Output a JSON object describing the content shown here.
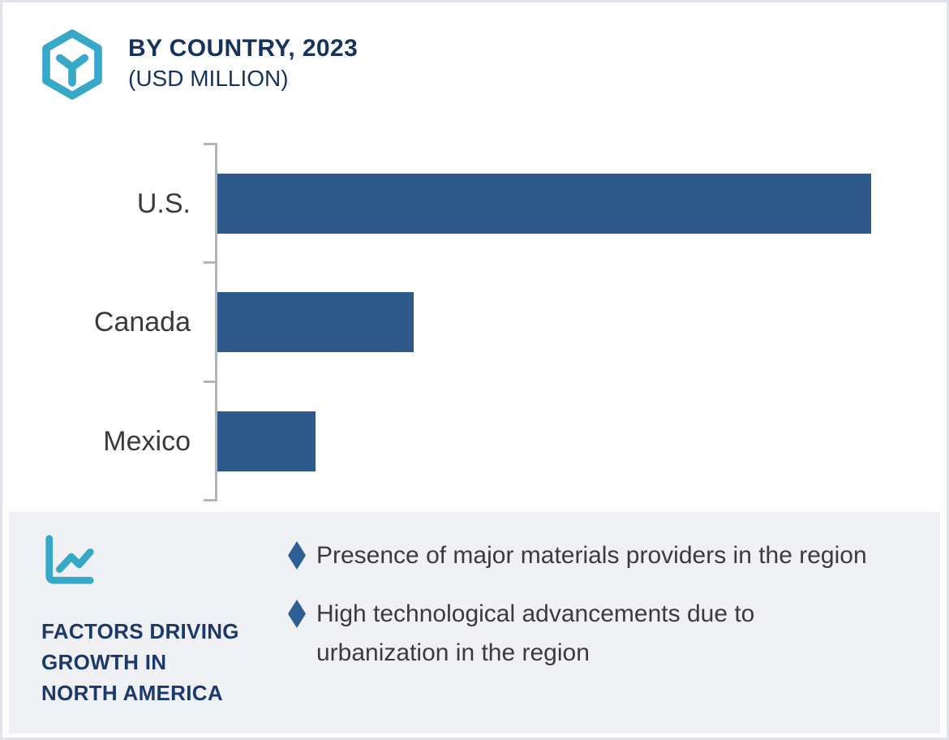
{
  "header": {
    "title_line1": "BY COUNTRY, 2023",
    "title_line2": "(USD MILLION)",
    "icon": "hexagon-cube-icon"
  },
  "chart_data": {
    "type": "bar",
    "orientation": "horizontal",
    "title": "BY COUNTRY, 2023 (USD MILLION)",
    "categories": [
      "U.S.",
      "Canada",
      "Mexico"
    ],
    "values": [
      100,
      30,
      15
    ],
    "values_are_relative_estimates": true,
    "value_axis_labels_visible": false,
    "grid": false,
    "legend": false,
    "bar_color": "#2d5a8a",
    "axis_color": "#b2b5ba",
    "label_color": "#3a3a3a"
  },
  "footer": {
    "icon": "line-chart-icon",
    "heading_lines": [
      "FACTORS DRIVING",
      "GROWTH IN",
      "NORTH AMERICA"
    ],
    "bullet_marker_icon": "diamond-icon",
    "bullets": [
      "Presence of major materials providers in the region",
      "High technological advancements due to urbanization in the region"
    ],
    "background_color": "#f0f1f5"
  },
  "colors": {
    "navy": "#16335f",
    "teal": "#38a8c8",
    "steel_blue": "#2d5a8a",
    "body_text": "#3b3b3b",
    "card_border": "#e1e4eb"
  }
}
